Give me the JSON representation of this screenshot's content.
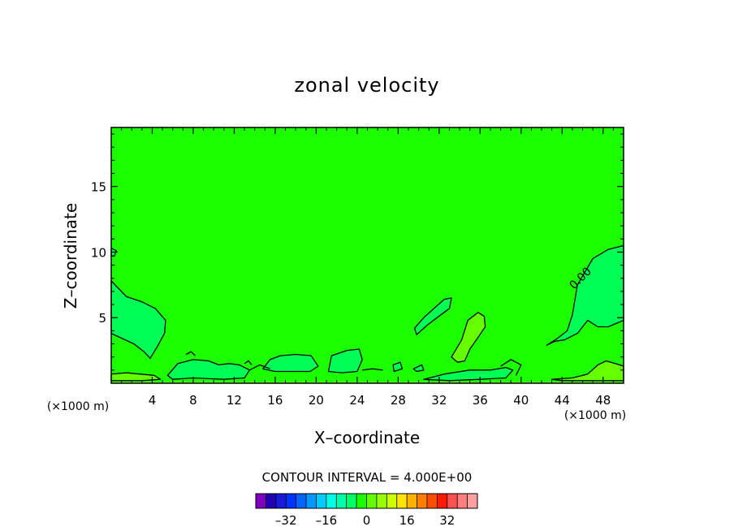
{
  "chart_data": {
    "type": "heatmap",
    "title": "zonal velocity",
    "xlabel": "X–coordinate",
    "ylabel": "Z–coordinate",
    "x_unit_left": "(×1000 m)",
    "x_unit_right": "(×1000 m)",
    "xlim": [
      0,
      50
    ],
    "ylim": [
      0,
      19.5
    ],
    "x_ticks": [
      4,
      8,
      12,
      16,
      20,
      24,
      28,
      32,
      36,
      40,
      44,
      48
    ],
    "y_ticks": [
      5,
      10,
      15
    ],
    "contour_interval_text": "CONTOUR INTERVAL = 4.000E+00",
    "contour_label": "0.00",
    "background_value": 0,
    "background_color": "#1cff00",
    "colorbar": {
      "colors": [
        "#7f00bf",
        "#2200b3",
        "#1a1ad9",
        "#0033ff",
        "#0066ff",
        "#0099ff",
        "#00ccff",
        "#00ffe5",
        "#00ffaa",
        "#00ff66",
        "#1cff00",
        "#66ff00",
        "#99ff00",
        "#ccff00",
        "#ffe500",
        "#ffb300",
        "#ff8000",
        "#ff4d00",
        "#ff1a00",
        "#ff5050",
        "#ff7f7f",
        "#ffa0a0"
      ],
      "tick_values": [
        -32,
        -16,
        0,
        16,
        32
      ],
      "tick_labels": [
        "–32",
        "–16",
        "0",
        "16",
        "32"
      ],
      "vmin": -44,
      "vmax": 44
    },
    "regions": [
      {
        "value": 4,
        "color": "#00ff55",
        "points": [
          [
            0,
            7.8
          ],
          [
            1.5,
            6.6
          ],
          [
            3,
            6.2
          ],
          [
            4.3,
            5.7
          ],
          [
            5.3,
            4.8
          ],
          [
            5.2,
            3.8
          ],
          [
            4.5,
            2.8
          ],
          [
            3.8,
            1.9
          ],
          [
            3.2,
            2.4
          ],
          [
            2.2,
            3.0
          ],
          [
            0,
            3.8
          ]
        ]
      },
      {
        "value": 4,
        "color": "#00ff55",
        "points": [
          [
            0,
            10.3
          ],
          [
            0.5,
            10.1
          ],
          [
            0.3,
            9.7
          ],
          [
            0,
            9.7
          ]
        ]
      },
      {
        "value": 4,
        "color": "#00ff55",
        "points": [
          [
            45.5,
            7.5
          ],
          [
            47,
            9.5
          ],
          [
            48.5,
            10.2
          ],
          [
            50,
            10.5
          ],
          [
            50,
            4.8
          ],
          [
            48.5,
            4.3
          ],
          [
            47.5,
            4.3
          ],
          [
            46.5,
            4.8
          ],
          [
            45.5,
            3.8
          ],
          [
            44.2,
            3.3
          ],
          [
            43.3,
            3.2
          ],
          [
            42.5,
            2.9
          ],
          [
            43.5,
            3.4
          ],
          [
            44.5,
            4.0
          ],
          [
            45,
            5.2
          ]
        ]
      },
      {
        "value": 4,
        "color": "#00ff55",
        "points": [
          [
            29.6,
            4.2
          ],
          [
            30.5,
            5.0
          ],
          [
            31.5,
            5.7
          ],
          [
            32.5,
            6.4
          ],
          [
            33.2,
            6.5
          ],
          [
            33,
            5.7
          ],
          [
            31.8,
            5.0
          ],
          [
            30.8,
            4.4
          ],
          [
            29.8,
            3.7
          ]
        ]
      },
      {
        "value": 4,
        "color": "#00ff55",
        "points": [
          [
            15.5,
            1.8
          ],
          [
            16.5,
            2.1
          ],
          [
            18,
            2.2
          ],
          [
            19.5,
            2.1
          ],
          [
            20.2,
            1.3
          ],
          [
            19.4,
            0.9
          ],
          [
            17.5,
            0.9
          ],
          [
            16,
            0.9
          ],
          [
            14.8,
            1.1
          ]
        ]
      },
      {
        "value": 4,
        "color": "#00ff55",
        "points": [
          [
            21.5,
            2.1
          ],
          [
            23,
            2.5
          ],
          [
            24.2,
            2.6
          ],
          [
            24.5,
            1.8
          ],
          [
            24,
            0.9
          ],
          [
            22.5,
            0.8
          ],
          [
            21.2,
            0.9
          ]
        ]
      },
      {
        "value": 4,
        "color": "#00ff55",
        "points": [
          [
            5.5,
            0.6
          ],
          [
            6.5,
            1.5
          ],
          [
            8,
            1.8
          ],
          [
            9.5,
            1.7
          ],
          [
            10.5,
            1.4
          ],
          [
            11.5,
            1.5
          ],
          [
            12.5,
            1.4
          ],
          [
            13.5,
            1.0
          ],
          [
            13,
            0.4
          ],
          [
            11,
            0.3
          ],
          [
            8,
            0.4
          ],
          [
            6,
            0.3
          ]
        ]
      },
      {
        "value": 4,
        "color": "#00ff55",
        "points": [
          [
            27.5,
            1.4
          ],
          [
            28.2,
            1.6
          ],
          [
            28.4,
            1.1
          ],
          [
            27.6,
            0.9
          ]
        ]
      },
      {
        "value": 4,
        "color": "#00ff55",
        "points": [
          [
            30.5,
            0.3
          ],
          [
            32.5,
            0.7
          ],
          [
            35,
            1.0
          ],
          [
            37,
            1.0
          ],
          [
            38.5,
            1.2
          ],
          [
            39.2,
            1.0
          ],
          [
            38.5,
            0.4
          ],
          [
            36,
            0.3
          ],
          [
            33,
            0.2
          ]
        ]
      },
      {
        "value": 4,
        "color": "#00ff55",
        "points": [
          [
            29.5,
            1.1
          ],
          [
            30.3,
            1.4
          ],
          [
            30.5,
            1.0
          ],
          [
            29.8,
            0.9
          ]
        ]
      },
      {
        "value": -4,
        "color": "#66ff00",
        "points": [
          [
            33.2,
            2.0
          ],
          [
            34.2,
            3.3
          ],
          [
            34.8,
            4.8
          ],
          [
            35.8,
            5.4
          ],
          [
            36.4,
            5.1
          ],
          [
            36.5,
            4.3
          ],
          [
            35.8,
            3.5
          ],
          [
            35,
            2.6
          ],
          [
            34.5,
            1.7
          ],
          [
            33.8,
            1.6
          ]
        ]
      },
      {
        "value": -4,
        "color": "#66ff00",
        "points": [
          [
            0,
            0.7
          ],
          [
            1.5,
            0.8
          ],
          [
            2.8,
            0.7
          ],
          [
            4.2,
            0.6
          ],
          [
            4.8,
            0.3
          ],
          [
            3,
            0.2
          ],
          [
            0,
            0.2
          ]
        ]
      },
      {
        "value": -4,
        "color": "#66ff00",
        "points": [
          [
            43,
            0.3
          ],
          [
            45,
            0.4
          ],
          [
            46.5,
            0.7
          ],
          [
            47.5,
            1.4
          ],
          [
            48.3,
            1.7
          ],
          [
            49.2,
            1.5
          ],
          [
            50,
            1.3
          ],
          [
            50,
            0.2
          ],
          [
            47,
            0.2
          ],
          [
            44,
            0.2
          ]
        ]
      },
      {
        "value": -4,
        "color": "#66ff00",
        "points": [
          [
            0,
            0
          ],
          [
            50,
            0
          ],
          [
            50,
            0.1
          ],
          [
            0,
            0.1
          ]
        ]
      }
    ],
    "contours": [
      {
        "points": [
          [
            13.5,
            1.0
          ],
          [
            14.5,
            1.4
          ],
          [
            15.5,
            1.1
          ]
        ]
      },
      {
        "points": [
          [
            24.5,
            1.0
          ],
          [
            25.5,
            1.1
          ],
          [
            26.5,
            1.0
          ]
        ]
      },
      {
        "points": [
          [
            38,
            1.3
          ],
          [
            39,
            1.8
          ],
          [
            40,
            1.4
          ],
          [
            39.5,
            0.6
          ]
        ]
      },
      {
        "points": [
          [
            7.3,
            2.2
          ],
          [
            7.8,
            2.4
          ],
          [
            8.2,
            2.1
          ]
        ]
      },
      {
        "points": [
          [
            13,
            1.5
          ],
          [
            13.4,
            1.7
          ],
          [
            13.7,
            1.4
          ]
        ]
      }
    ]
  }
}
